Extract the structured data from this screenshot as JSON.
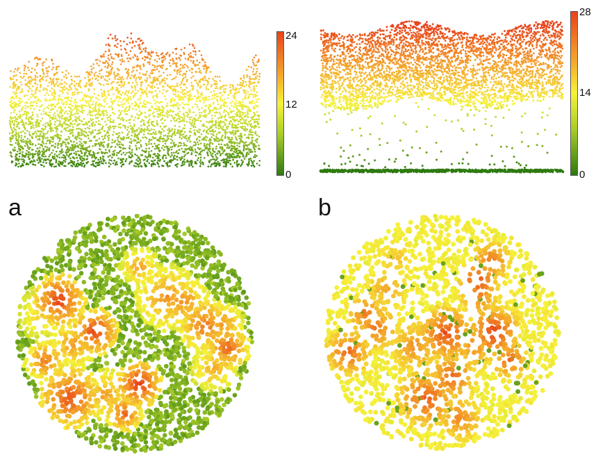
{
  "panels": [
    {
      "label": "a",
      "colorbar": {
        "max": "24",
        "mid": "12",
        "min": "0"
      }
    },
    {
      "label": "b",
      "colorbar": {
        "max": "28",
        "mid": "14",
        "min": "0"
      }
    }
  ],
  "colors": {
    "low": "#2e7a10",
    "low_mid": "#a8cc2a",
    "mid": "#f6f23a",
    "high_mid": "#f4a02a",
    "high": "#e8431b"
  }
}
